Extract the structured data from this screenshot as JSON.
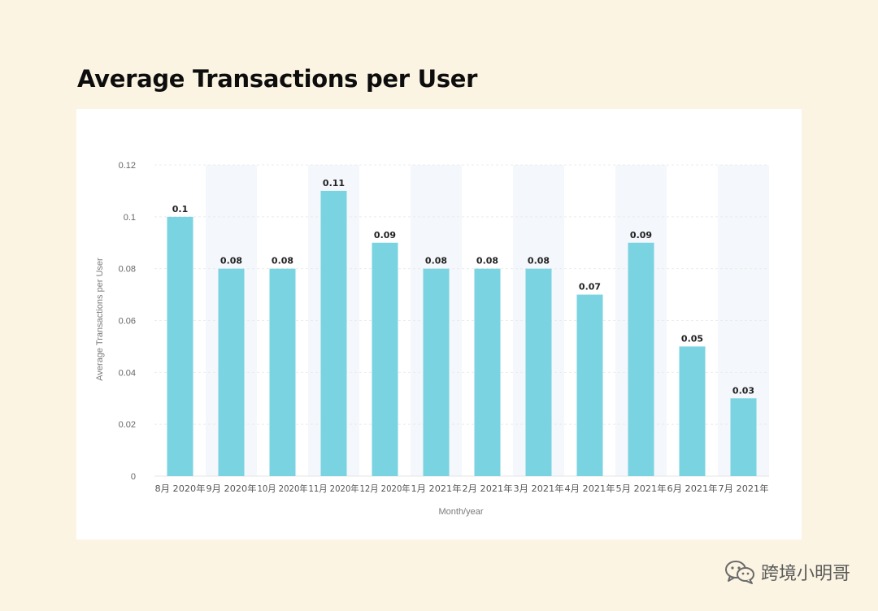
{
  "page": {
    "title": "Average Transactions per User"
  },
  "chart_data": {
    "type": "bar",
    "title": "Average Transactions per User",
    "xlabel": "Month/year",
    "ylabel": "Average Transactions per User",
    "ylim": [
      0,
      0.12
    ],
    "yticks": [
      0,
      0.02,
      0.04,
      0.06,
      0.08,
      0.1,
      0.12
    ],
    "ytick_labels": [
      "0",
      "0.02",
      "0.04",
      "0.06",
      "0.08",
      "0.1",
      "0.12"
    ],
    "categories": [
      "8月 2020年",
      "9月 2020年",
      "10月 2020年",
      "11月 2020年",
      "12月 2020年",
      "1月 2021年",
      "2月 2021年",
      "3月 2021年",
      "4月 2021年",
      "5月 2021年",
      "6月 2021年",
      "7月 2021年"
    ],
    "values": [
      0.1,
      0.08,
      0.08,
      0.11,
      0.09,
      0.08,
      0.08,
      0.08,
      0.07,
      0.09,
      0.05,
      0.03
    ],
    "data_labels": [
      "0.1",
      "0.08",
      "0.08",
      "0.11",
      "0.09",
      "0.08",
      "0.08",
      "0.08",
      "0.07",
      "0.09",
      "0.05",
      "0.03"
    ],
    "grid": true,
    "bar_color": "#7ad3e0",
    "band_color": "#f4f7fb"
  },
  "watermark": {
    "icon": "wechat-icon",
    "text": "跨境小明哥"
  }
}
